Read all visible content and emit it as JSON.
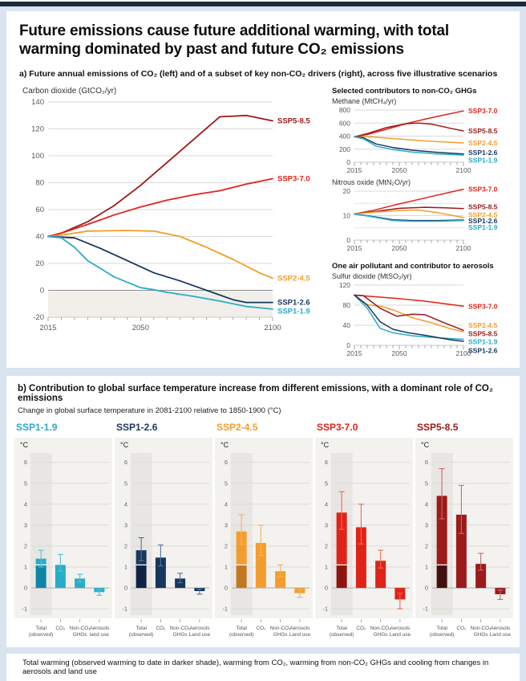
{
  "page": {
    "title": "Future emissions cause future additional warming, with total warming dominated by past and future CO₂ emissions",
    "panel_a_label": "a) Future annual emissions of CO₂ (left) and of a subset of key non-CO₂ drivers (right), across five illustrative scenarios",
    "ghg_header": "Selected contributors to non-CO₂ GHGs",
    "aerosol_header": "One air pollutant and contributor to aerosols",
    "panel_b_label": "b) Contribution to global surface temperature increase from different emissions, with a dominant role of CO₂ emissions",
    "panel_b_sublabel": "Change in global surface temperature in 2081-2100 relative to 1850-1900 (°C)",
    "footer": "Total warming (observed warming to date in darker shade), warming from CO₂, warming from non-CO₂ GHGs and cooling from changes in aerosols and land use"
  },
  "colors": {
    "accent_bar": "#1b2a3c",
    "page_background": "#d9e4f0",
    "ssp1_19": "#29acc9",
    "ssp1_26": "#18375f",
    "ssp2_45": "#f49d2c",
    "ssp3_70": "#e02318",
    "ssp5_85": "#9c1a1a"
  },
  "chart_data": [
    {
      "type": "line",
      "id": "co2",
      "title": "Carbon dioxide (GtCO₂/yr)",
      "x_range": [
        2015,
        2100
      ],
      "xticks": [
        2015,
        2050,
        2100
      ],
      "ylim": [
        -20,
        140
      ],
      "yticks": [
        -20,
        0,
        20,
        40,
        60,
        80,
        100,
        120,
        140
      ],
      "shade_below_zero": true,
      "zero_line": true,
      "grid": true,
      "legend_position": "right",
      "series": [
        {
          "name": "SSP5-8.5",
          "color": "#9c1a1a",
          "label_y": 126,
          "points": [
            [
              2015,
              40
            ],
            [
              2020,
              42.5
            ],
            [
              2030,
              51
            ],
            [
              2040,
              63
            ],
            [
              2050,
              78
            ],
            [
              2060,
              95
            ],
            [
              2070,
              112
            ],
            [
              2080,
              129
            ],
            [
              2085,
              129.5
            ],
            [
              2090,
              130
            ],
            [
              2100,
              126
            ]
          ]
        },
        {
          "name": "SSP3-7.0",
          "color": "#e02318",
          "label_y": 83,
          "points": [
            [
              2015,
              40
            ],
            [
              2020,
              42.5
            ],
            [
              2030,
              49
            ],
            [
              2040,
              56
            ],
            [
              2050,
              62
            ],
            [
              2060,
              67
            ],
            [
              2070,
              71
            ],
            [
              2080,
              74
            ],
            [
              2090,
              79
            ],
            [
              2100,
              83
            ]
          ]
        },
        {
          "name": "SSP2-4.5",
          "color": "#f49d2c",
          "label_y": 9,
          "points": [
            [
              2015,
              40
            ],
            [
              2020,
              41
            ],
            [
              2030,
              44
            ],
            [
              2045,
              44.5
            ],
            [
              2055,
              44
            ],
            [
              2065,
              40
            ],
            [
              2075,
              32
            ],
            [
              2085,
              23
            ],
            [
              2095,
              13
            ],
            [
              2100,
              9
            ]
          ]
        },
        {
          "name": "SSP1-2.6",
          "color": "#18375f",
          "label_y": -9,
          "points": [
            [
              2015,
              40
            ],
            [
              2020,
              39.5
            ],
            [
              2025,
              39
            ],
            [
              2035,
              31
            ],
            [
              2045,
              22
            ],
            [
              2055,
              13
            ],
            [
              2065,
              7
            ],
            [
              2075,
              0
            ],
            [
              2085,
              -7
            ],
            [
              2090,
              -9
            ],
            [
              2100,
              -9
            ]
          ]
        },
        {
          "name": "SSP1-1.9",
          "color": "#29acc9",
          "label_y": -15.5,
          "points": [
            [
              2015,
              40
            ],
            [
              2020,
              39
            ],
            [
              2025,
              32
            ],
            [
              2030,
              22
            ],
            [
              2040,
              10
            ],
            [
              2050,
              2
            ],
            [
              2055,
              0.5
            ],
            [
              2060,
              -1.5
            ],
            [
              2070,
              -4.5
            ],
            [
              2080,
              -8
            ],
            [
              2090,
              -12
            ],
            [
              2100,
              -14
            ]
          ]
        }
      ]
    },
    {
      "type": "line",
      "id": "methane",
      "title": "Methane (MtCH₄/yr)",
      "x_range": [
        2015,
        2100
      ],
      "xticks": [
        2015,
        2050,
        2100
      ],
      "ylim": [
        0,
        800
      ],
      "yticks": [
        0,
        200,
        400,
        600,
        800
      ],
      "shade_below_zero": false,
      "zero_line": false,
      "grid": true,
      "legend_position": "right",
      "series": [
        {
          "name": "SSP3-7.0",
          "color": "#e02318",
          "label_y": 790,
          "points": [
            [
              2015,
              390
            ],
            [
              2025,
              425
            ],
            [
              2040,
              505
            ],
            [
              2055,
              590
            ],
            [
              2070,
              660
            ],
            [
              2085,
              725
            ],
            [
              2100,
              785
            ]
          ]
        },
        {
          "name": "SSP5-8.5",
          "color": "#9c1a1a",
          "label_y": 480,
          "points": [
            [
              2015,
              390
            ],
            [
              2025,
              440
            ],
            [
              2040,
              530
            ],
            [
              2055,
              590
            ],
            [
              2065,
              600
            ],
            [
              2075,
              585
            ],
            [
              2090,
              520
            ],
            [
              2100,
              480
            ]
          ]
        },
        {
          "name": "SSP2-4.5",
          "color": "#f49d2c",
          "label_y": 295,
          "points": [
            [
              2015,
              390
            ],
            [
              2025,
              392
            ],
            [
              2040,
              370
            ],
            [
              2060,
              340
            ],
            [
              2080,
              315
            ],
            [
              2100,
              295
            ]
          ]
        },
        {
          "name": "SSP1-2.6",
          "color": "#18375f",
          "label_y": 150,
          "points": [
            [
              2015,
              390
            ],
            [
              2022,
              375
            ],
            [
              2032,
              280
            ],
            [
              2045,
              225
            ],
            [
              2060,
              185
            ],
            [
              2080,
              150
            ],
            [
              2100,
              125
            ]
          ]
        },
        {
          "name": "SSP1-1.9",
          "color": "#29acc9",
          "label_y": 30,
          "points": [
            [
              2015,
              390
            ],
            [
              2022,
              360
            ],
            [
              2032,
              245
            ],
            [
              2045,
              195
            ],
            [
              2060,
              155
            ],
            [
              2080,
              125
            ],
            [
              2100,
              110
            ]
          ]
        }
      ]
    },
    {
      "type": "line",
      "id": "nitrous",
      "title": "Nitrous oxide (MtN₂O/yr)",
      "x_range": [
        2015,
        2100
      ],
      "xticks": [
        2015,
        2050,
        2100
      ],
      "ylim": [
        0,
        20
      ],
      "yticks": [
        0,
        10,
        20
      ],
      "yticks_minor": [
        5,
        15
      ],
      "shade_below_zero": false,
      "zero_line": false,
      "grid": true,
      "legend_position": "right",
      "series": [
        {
          "name": "SSP3-7.0",
          "color": "#e02318",
          "label_y": 20.8,
          "points": [
            [
              2015,
              10.7
            ],
            [
              2030,
              12.2
            ],
            [
              2050,
              14.8
            ],
            [
              2075,
              17.8
            ],
            [
              2100,
              20.8
            ]
          ]
        },
        {
          "name": "SSP5-8.5",
          "color": "#9c1a1a",
          "label_y": 13.6,
          "points": [
            [
              2015,
              10.7
            ],
            [
              2030,
              11.6
            ],
            [
              2050,
              13
            ],
            [
              2070,
              13.4
            ],
            [
              2085,
              13.2
            ],
            [
              2100,
              12.9
            ]
          ]
        },
        {
          "name": "SSP2-4.5",
          "color": "#f49d2c",
          "label_y": 10.4,
          "points": [
            [
              2015,
              10.7
            ],
            [
              2030,
              11.4
            ],
            [
              2050,
              12.1
            ],
            [
              2065,
              12.3
            ],
            [
              2080,
              11.2
            ],
            [
              2100,
              9.2
            ]
          ]
        },
        {
          "name": "SSP1-2.6",
          "color": "#18375f",
          "label_y": 7.8,
          "points": [
            [
              2015,
              10.7
            ],
            [
              2030,
              9.6
            ],
            [
              2045,
              8.3
            ],
            [
              2060,
              8
            ],
            [
              2080,
              8
            ],
            [
              2100,
              8.2
            ]
          ]
        },
        {
          "name": "SSP1-1.9",
          "color": "#29acc9",
          "label_y": 5.2,
          "points": [
            [
              2015,
              10.7
            ],
            [
              2030,
              9.4
            ],
            [
              2045,
              8
            ],
            [
              2060,
              7.7
            ],
            [
              2080,
              7.7
            ],
            [
              2100,
              8
            ]
          ]
        }
      ]
    },
    {
      "type": "line",
      "id": "sulfur",
      "title": "Sulfur dioxide (MtSO₂/yr)",
      "x_range": [
        2015,
        2100
      ],
      "xticks": [
        2015,
        2050,
        2100
      ],
      "ylim": [
        0,
        120
      ],
      "yticks": [
        0,
        40,
        80,
        120
      ],
      "shade_below_zero": false,
      "zero_line": false,
      "grid": true,
      "legend_position": "right",
      "series": [
        {
          "name": "SSP3-7.0",
          "color": "#e02318",
          "label_y": 78,
          "points": [
            [
              2015,
              100
            ],
            [
              2030,
              97
            ],
            [
              2050,
              93
            ],
            [
              2070,
              88
            ],
            [
              2100,
              78
            ]
          ]
        },
        {
          "name": "SSP2-4.5",
          "color": "#f49d2c",
          "label_y": 40,
          "points": [
            [
              2015,
              100
            ],
            [
              2025,
              81
            ],
            [
              2037,
              77
            ],
            [
              2047,
              69
            ],
            [
              2060,
              55
            ],
            [
              2075,
              45
            ],
            [
              2090,
              33
            ],
            [
              2100,
              27
            ]
          ]
        },
        {
          "name": "SSP5-8.5",
          "color": "#9c1a1a",
          "label_y": 23,
          "points": [
            [
              2015,
              100
            ],
            [
              2022,
              99
            ],
            [
              2035,
              74
            ],
            [
              2048,
              58
            ],
            [
              2060,
              62
            ],
            [
              2070,
              61
            ],
            [
              2085,
              45
            ],
            [
              2100,
              30
            ]
          ]
        },
        {
          "name": "SSP1-1.9",
          "color": "#29acc9",
          "label_y": 7,
          "points": [
            [
              2015,
              100
            ],
            [
              2025,
              74
            ],
            [
              2035,
              34
            ],
            [
              2045,
              25
            ],
            [
              2060,
              19
            ],
            [
              2080,
              15
            ],
            [
              2100,
              12
            ]
          ]
        },
        {
          "name": "SSP1-2.6",
          "color": "#18375f",
          "label_y": -10,
          "points": [
            [
              2015,
              100
            ],
            [
              2025,
              80
            ],
            [
              2035,
              47
            ],
            [
              2045,
              32
            ],
            [
              2057,
              25
            ],
            [
              2070,
              20
            ],
            [
              2090,
              11
            ],
            [
              2100,
              8
            ]
          ]
        }
      ]
    },
    {
      "type": "bar",
      "id": "ssp1-19",
      "title": "SSP1-1.9",
      "color": "#29acc9",
      "dark": "#0e84a6",
      "err": "#55c0d8",
      "unit": "°C",
      "ylim": [
        -1,
        6
      ],
      "observed": 1.1,
      "categories": [
        [
          "Total",
          "(observed)"
        ],
        [
          "CO₂"
        ],
        [
          "Non-CO₂",
          "GHGs"
        ],
        [
          "Aerosols",
          "land use"
        ]
      ],
      "values": [
        1.4,
        1.1,
        0.45,
        -0.2
      ],
      "err_low": [
        1.0,
        0.8,
        0.3,
        -0.35
      ],
      "err_high": [
        1.8,
        1.6,
        0.65,
        -0.08
      ]
    },
    {
      "type": "bar",
      "id": "ssp1-26",
      "title": "SSP1-2.6",
      "color": "#18375f",
      "dark": "#0f2443",
      "err": "#51749e",
      "unit": "°C",
      "ylim": [
        -1,
        6
      ],
      "observed": 1.1,
      "categories": [
        [
          "Total",
          "(observed)"
        ],
        [
          "CO₂"
        ],
        [
          "Non-CO₂",
          "GHGs"
        ],
        [
          "Aerosols",
          "Land use"
        ]
      ],
      "values": [
        1.8,
        1.45,
        0.45,
        -0.15
      ],
      "err_low": [
        1.3,
        1.05,
        0.25,
        -0.3
      ],
      "err_high": [
        2.4,
        2.05,
        0.7,
        -0.05
      ]
    },
    {
      "type": "bar",
      "id": "ssp2-45",
      "title": "SSP2-4.5",
      "color": "#f49d2c",
      "dark": "#c2781f",
      "err": "#f6b261",
      "unit": "°C",
      "ylim": [
        -1,
        6
      ],
      "observed": 1.1,
      "categories": [
        [
          "Total",
          "(observed)"
        ],
        [
          "CO₂"
        ],
        [
          "Non-CO₂",
          "GHGs"
        ],
        [
          "Aerosols",
          "Land use"
        ]
      ],
      "values": [
        2.7,
        2.15,
        0.8,
        -0.25
      ],
      "err_low": [
        2.1,
        1.55,
        0.55,
        -0.45
      ],
      "err_high": [
        3.5,
        3.0,
        1.1,
        -0.1
      ]
    },
    {
      "type": "bar",
      "id": "ssp3-70",
      "title": "SSP3-7.0",
      "color": "#e02318",
      "dark": "#8e1410",
      "err": "#ee6a5e",
      "unit": "°C",
      "ylim": [
        -1,
        6
      ],
      "observed": 1.1,
      "categories": [
        [
          "Total",
          "(observed)"
        ],
        [
          "CO₂"
        ],
        [
          "Non-CO₂",
          "GHGs"
        ],
        [
          "Aerosols",
          "Land use"
        ]
      ],
      "values": [
        3.6,
        2.9,
        1.3,
        -0.55
      ],
      "err_low": [
        2.8,
        2.1,
        0.95,
        -1.0
      ],
      "err_high": [
        4.6,
        4.0,
        1.8,
        -0.25
      ]
    },
    {
      "type": "bar",
      "id": "ssp5-85",
      "title": "SSP5-8.5",
      "color": "#9c1a1a",
      "dark": "#431010",
      "err": "#c76b6b",
      "unit": "°C",
      "ylim": [
        -1,
        6
      ],
      "observed": 1.1,
      "categories": [
        [
          "Total",
          "(observed)"
        ],
        [
          "CO₂"
        ],
        [
          "Non-CO₂",
          "GHGs"
        ],
        [
          "Aerosols",
          "Land use"
        ]
      ],
      "values": [
        4.4,
        3.5,
        1.15,
        -0.3
      ],
      "err_low": [
        3.3,
        2.6,
        0.85,
        -0.55
      ],
      "err_high": [
        5.7,
        4.9,
        1.65,
        -0.1
      ]
    }
  ]
}
